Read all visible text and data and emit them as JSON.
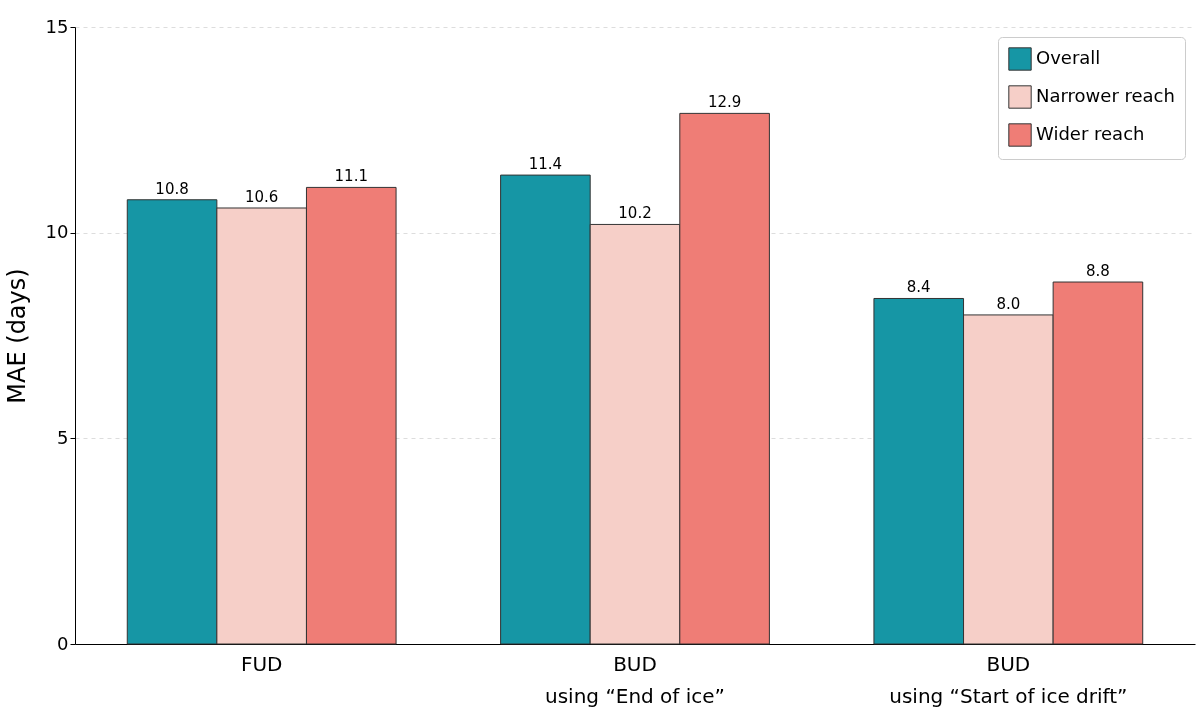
{
  "chart_data": {
    "type": "bar",
    "categories": [
      "FUD",
      "BUD\nusing “End of ice”",
      "BUD\nusing “Start of ice drift”"
    ],
    "ylabel": "MAE (days)",
    "series": [
      {
        "name": "Overall",
        "color": "#1696a5",
        "values": [
          10.8,
          11.4,
          8.4
        ],
        "value_labels": [
          "10.8",
          "11.4",
          "8.4"
        ]
      },
      {
        "name": "Narrower reach",
        "color": "#f6cfc8",
        "values": [
          10.6,
          10.2,
          8.0
        ],
        "value_labels": [
          "10.6",
          "10.2",
          "8.0"
        ]
      },
      {
        "name": "Wider reach",
        "color": "#ef7d76",
        "values": [
          11.1,
          12.9,
          8.8
        ],
        "value_labels": [
          "11.1",
          "12.9",
          "8.8"
        ]
      }
    ],
    "ylim": [
      0,
      15
    ],
    "yticks": [
      0,
      5,
      10,
      15
    ],
    "grid": "y",
    "legend": "top right"
  }
}
